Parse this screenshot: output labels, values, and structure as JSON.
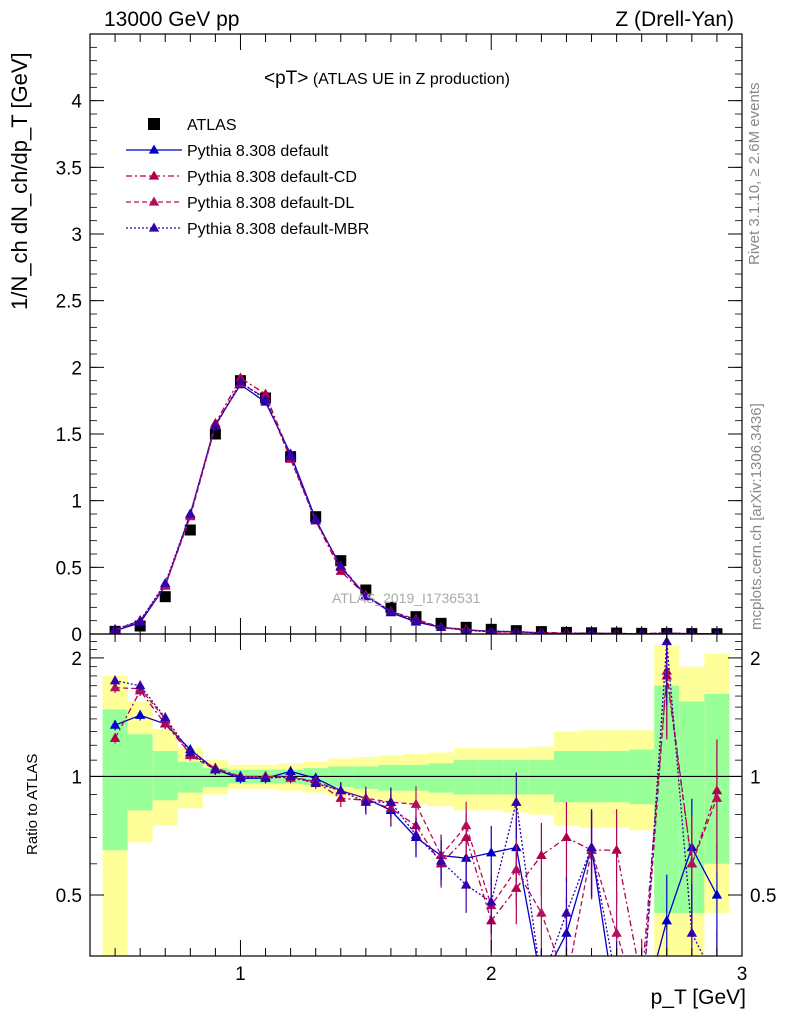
{
  "header": {
    "left": "13000 GeV pp",
    "right": "Z (Drell-Yan)"
  },
  "plot_title_main": "<pT>",
  "plot_title_sub": "(ATLAS UE in Z production)",
  "side_text_top": "Rivet 3.1.10, ≥ 2.6M events",
  "side_text_bottom": "mcplots.cern.ch [arXiv:1306.3436]",
  "watermark": "ATLAS_2019_I1736531",
  "ylabel_main": "1/N_ch dN_ch/dp_T [GeV]",
  "ylabel_ratio": "Ratio to ATLAS",
  "xlabel": "p_T [GeV]",
  "colors": {
    "data": "#000000",
    "default": "#0000cc",
    "cd": "#b2004c",
    "dl": "#b2105e",
    "mbr": "#3300aa",
    "band_green": "#99ff99",
    "band_yellow": "#ffff99"
  },
  "chart_data": [
    {
      "type": "line",
      "xlim": [
        0.4,
        3.0
      ],
      "ylim": [
        0,
        4.5
      ],
      "x_ticks": [
        1,
        2,
        3
      ],
      "y_ticks": [
        0,
        0.5,
        1,
        1.5,
        2,
        2.5,
        3,
        3.5,
        4
      ],
      "y_tick_labels": [
        "0",
        "0.5",
        "1",
        "1.5",
        "2",
        "2.5",
        "3",
        "3.5",
        "4"
      ],
      "legend": "top-left",
      "x": [
        0.5,
        0.6,
        0.7,
        0.8,
        0.9,
        1.0,
        1.1,
        1.2,
        1.3,
        1.4,
        1.5,
        1.6,
        1.7,
        1.8,
        1.9,
        2.0,
        2.1,
        2.2,
        2.3,
        2.4,
        2.5,
        2.6,
        2.7,
        2.8,
        2.9
      ],
      "series": [
        {
          "name": "ATLAS",
          "marker": "square",
          "line": "none",
          "values": [
            0.02,
            0.06,
            0.28,
            0.78,
            1.5,
            1.9,
            1.77,
            1.33,
            0.88,
            0.55,
            0.33,
            0.2,
            0.13,
            0.08,
            0.05,
            0.035,
            0.025,
            0.018,
            0.012,
            0.009,
            0.007,
            0.005,
            0.004,
            0.003,
            0.002
          ]
        },
        {
          "name": "Pythia 8.308 default",
          "marker": "triangle",
          "line": "solid",
          "values": [
            0.025,
            0.085,
            0.36,
            0.9,
            1.57,
            1.87,
            1.74,
            1.35,
            0.86,
            0.5,
            0.29,
            0.16,
            0.09,
            0.05,
            0.03,
            0.022,
            0.016,
            0.008,
            0.004,
            0.006,
            0.002,
            0.0015,
            0.0009,
            0.002,
            0.001
          ]
        },
        {
          "name": "Pythia 8.308 default-CD",
          "marker": "triangle",
          "line": "dashdot",
          "values": [
            0.025,
            0.1,
            0.37,
            0.89,
            1.58,
            1.92,
            1.8,
            1.33,
            0.85,
            0.47,
            0.29,
            0.17,
            0.1,
            0.05,
            0.035,
            0.015,
            0.013,
            0.011,
            0.008,
            0.006,
            0.0045,
            0.002,
            0.007,
            0.0018,
            0.0018
          ]
        },
        {
          "name": "Pythia 8.308 default-DL",
          "marker": "triangle",
          "line": "dashed",
          "values": [
            0.033,
            0.1,
            0.36,
            0.88,
            1.56,
            1.88,
            1.77,
            1.31,
            0.85,
            0.51,
            0.29,
            0.17,
            0.11,
            0.05,
            0.031,
            0.018,
            0.015,
            0.009,
            0.003,
            0.005,
            0.003,
            0.001,
            0.008,
            0.0015,
            0.0017
          ]
        },
        {
          "name": "Pythia 8.308 default-MBR",
          "marker": "triangle",
          "line": "dotted",
          "values": [
            0.035,
            0.1,
            0.38,
            0.9,
            1.56,
            1.89,
            1.76,
            1.33,
            0.85,
            0.51,
            0.28,
            0.17,
            0.1,
            0.05,
            0.026,
            0.017,
            0.021,
            0.005,
            0.002,
            0.006,
            0.001,
            0.001,
            0.0088,
            0.001,
            0.001
          ]
        }
      ]
    },
    {
      "type": "line",
      "ylabel": "Ratio to ATLAS",
      "xlim": [
        0.4,
        3.0
      ],
      "ylim": [
        0.35,
        2.3
      ],
      "x_ticks": [
        1,
        2,
        3
      ],
      "x_tick_labels": [
        "1",
        "2",
        "3"
      ],
      "y_ticks": [
        0.5,
        1,
        2
      ],
      "y_tick_labels": [
        "0.5",
        "1",
        "2"
      ],
      "reference_line": 1,
      "x": [
        0.5,
        0.6,
        0.7,
        0.8,
        0.9,
        1.0,
        1.1,
        1.2,
        1.3,
        1.4,
        1.5,
        1.6,
        1.7,
        1.8,
        1.9,
        2.0,
        2.1,
        2.2,
        2.3,
        2.4,
        2.5,
        2.6,
        2.7,
        2.8,
        2.9
      ],
      "bands": {
        "bins": [
          [
            0.45,
            0.55
          ],
          [
            0.55,
            0.65
          ],
          [
            0.65,
            0.75
          ],
          [
            0.75,
            0.85
          ],
          [
            0.85,
            0.95
          ],
          [
            0.95,
            1.05
          ],
          [
            1.05,
            1.15
          ],
          [
            1.15,
            1.25
          ],
          [
            1.25,
            1.35
          ],
          [
            1.35,
            1.45
          ],
          [
            1.45,
            1.55
          ],
          [
            1.55,
            1.65
          ],
          [
            1.65,
            1.75
          ],
          [
            1.75,
            1.85
          ],
          [
            1.85,
            1.95
          ],
          [
            1.95,
            2.05
          ],
          [
            2.05,
            2.15
          ],
          [
            2.15,
            2.25
          ],
          [
            2.25,
            2.35
          ],
          [
            2.35,
            2.45
          ],
          [
            2.45,
            2.55
          ],
          [
            2.55,
            2.65
          ],
          [
            2.65,
            2.75
          ],
          [
            2.75,
            2.85
          ],
          [
            2.85,
            2.95
          ]
        ],
        "yellow_low": [
          0.3,
          0.68,
          0.75,
          0.83,
          0.9,
          0.93,
          0.93,
          0.92,
          0.91,
          0.89,
          0.88,
          0.86,
          0.85,
          0.84,
          0.82,
          0.82,
          0.81,
          0.8,
          0.75,
          0.74,
          0.74,
          0.73,
          0.3,
          0.3,
          0.45
        ],
        "yellow_high": [
          1.8,
          1.55,
          1.32,
          1.18,
          1.1,
          1.07,
          1.07,
          1.08,
          1.09,
          1.11,
          1.12,
          1.13,
          1.14,
          1.15,
          1.18,
          1.18,
          1.18,
          1.19,
          1.3,
          1.31,
          1.31,
          1.31,
          2.15,
          1.9,
          2.05
        ],
        "green_low": [
          0.65,
          0.82,
          0.87,
          0.91,
          0.94,
          0.96,
          0.96,
          0.96,
          0.95,
          0.94,
          0.93,
          0.92,
          0.92,
          0.91,
          0.9,
          0.9,
          0.9,
          0.9,
          0.86,
          0.86,
          0.86,
          0.85,
          0.45,
          0.45,
          0.6
        ],
        "green_high": [
          1.48,
          1.28,
          1.16,
          1.09,
          1.05,
          1.04,
          1.04,
          1.04,
          1.05,
          1.06,
          1.06,
          1.07,
          1.07,
          1.08,
          1.1,
          1.1,
          1.1,
          1.1,
          1.16,
          1.16,
          1.16,
          1.17,
          1.7,
          1.55,
          1.62
        ]
      },
      "series": [
        {
          "name": "Pythia 8.308 default",
          "line": "solid",
          "values": [
            1.35,
            1.43,
            1.36,
            1.17,
            1.04,
            0.99,
            0.99,
            1.03,
            0.99,
            0.92,
            0.88,
            0.82,
            0.7,
            0.63,
            0.62,
            0.64,
            0.66,
            0.3,
            0.4,
            0.66,
            0.25,
            0.25,
            0.43,
            0.66,
            0.5
          ]
        },
        {
          "name": "Pythia 8.308 default-CD",
          "line": "dashdot",
          "values": [
            1.25,
            1.65,
            1.36,
            1.14,
            1.05,
            1.0,
            1.0,
            0.99,
            0.97,
            0.88,
            0.87,
            0.83,
            0.75,
            0.6,
            0.7,
            0.43,
            0.52,
            0.63,
            0.7,
            0.65,
            0.65,
            0.3,
            1.8,
            0.6,
            0.92
          ]
        },
        {
          "name": "Pythia 8.308 default-DL",
          "line": "dashed",
          "values": [
            1.68,
            1.67,
            1.4,
            1.13,
            1.04,
            1.0,
            1.0,
            1.0,
            0.97,
            0.92,
            0.88,
            0.86,
            0.85,
            0.63,
            0.75,
            0.47,
            0.58,
            0.45,
            0.3,
            0.65,
            0.4,
            0.25,
            1.85,
            0.6,
            0.88
          ]
        },
        {
          "name": "Pythia 8.308 default-MBR",
          "line": "dotted",
          "values": [
            1.75,
            1.7,
            1.41,
            1.15,
            1.04,
            1.0,
            0.99,
            1.0,
            0.96,
            0.92,
            0.86,
            0.86,
            0.71,
            0.61,
            0.53,
            0.48,
            0.86,
            0.3,
            0.45,
            0.66,
            0.3,
            0.25,
            2.2,
            0.4,
            0.3
          ]
        }
      ]
    }
  ]
}
